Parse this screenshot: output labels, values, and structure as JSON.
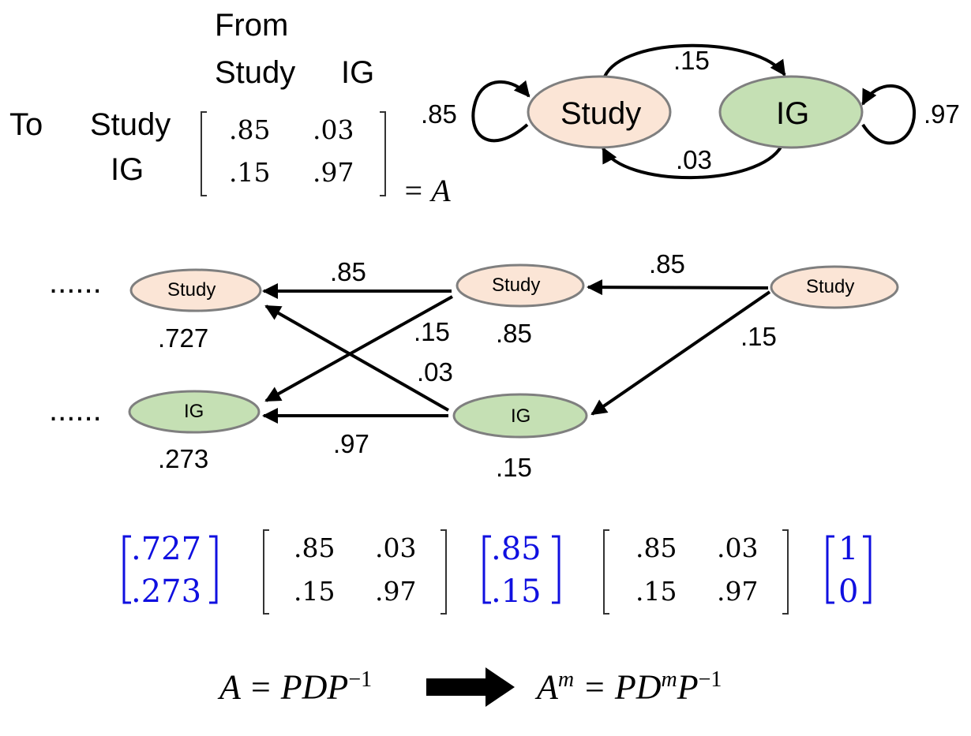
{
  "matrix_label": {
    "from": "From",
    "to": "To",
    "col_study": "Study",
    "col_ig": "IG",
    "row_study": "Study",
    "row_ig": "IG",
    "m11": ".85",
    "m12": ".03",
    "m21": ".15",
    "m22": ".97",
    "equals_a": "= A"
  },
  "state_graph": {
    "node_study": "Study",
    "node_ig": "IG",
    "edge_study_to_ig": ".15",
    "edge_ig_to_study": ".03",
    "self_study": ".85",
    "self_ig": ".97"
  },
  "chain": {
    "ellipsis_top": "......",
    "ellipsis_bottom": "......",
    "left_study": "Study",
    "left_ig": "IG",
    "mid_study": "Study",
    "mid_ig": "IG",
    "right_study": "Study",
    "left_study_value": ".727",
    "left_ig_value": ".273",
    "mid_study_value": ".85",
    "mid_ig_value": ".15",
    "edge_mid_study_to_left_study": ".85",
    "edge_mid_study_to_left_ig": ".15",
    "edge_mid_ig_to_left_study": ".03",
    "edge_mid_ig_to_left_ig": ".97",
    "edge_right_study_to_mid_study": ".85",
    "edge_right_study_to_mid_ig": ".15"
  },
  "equation_row": {
    "v1_top": ".727",
    "v1_bottom": ".273",
    "m1_11": ".85",
    "m1_12": ".03",
    "m1_21": ".15",
    "m1_22": ".97",
    "v2_top": ".85",
    "v2_bottom": ".15",
    "m2_11": ".85",
    "m2_12": ".03",
    "m2_21": ".15",
    "m2_22": ".97",
    "v3_top": "1",
    "v3_bottom": "0"
  },
  "formula": {
    "left": "A = PDP",
    "left_exp": "−1",
    "right_a": "A",
    "right_a_exp": "m",
    "right_mid": " = PD",
    "right_mid_exp": "m",
    "right_p": "P",
    "right_p_exp": "−1"
  },
  "colors": {
    "study_fill": "#fbe5d6",
    "ig_fill": "#c5e0b4",
    "node_stroke": "#7f7f7f",
    "vector_blue": "#1010e0"
  }
}
